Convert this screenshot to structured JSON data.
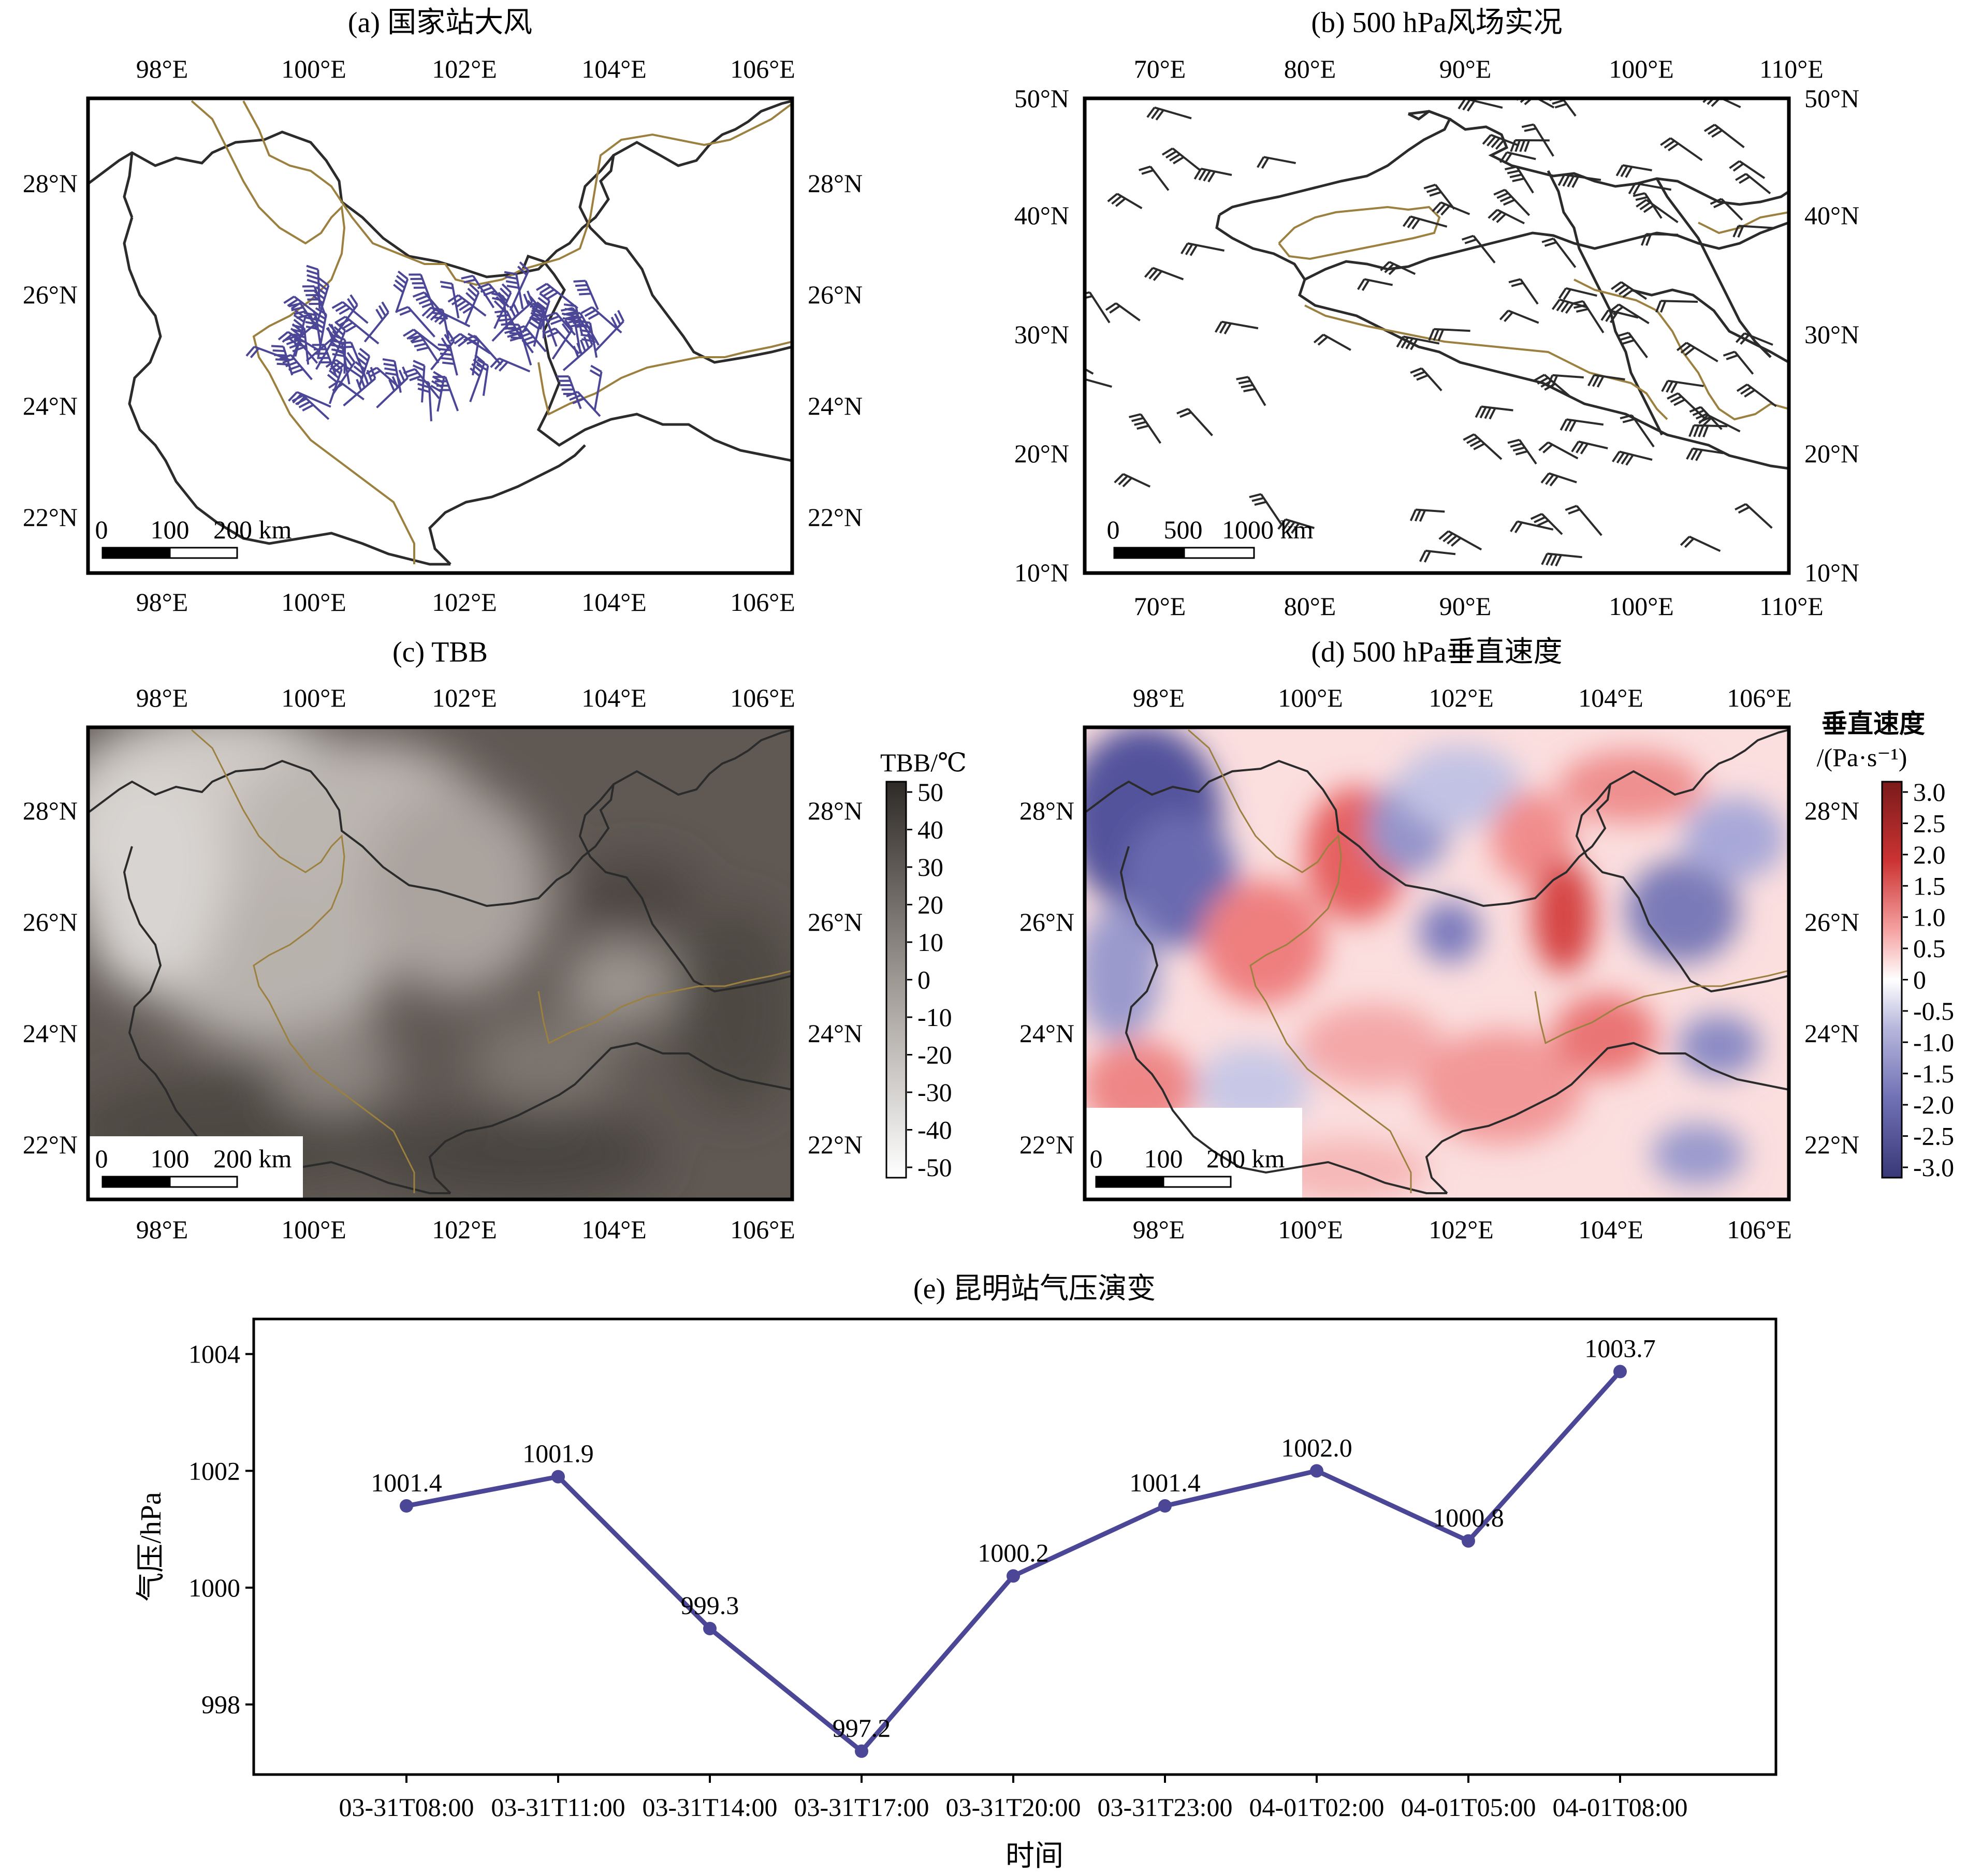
{
  "panels": {
    "a": {
      "title": "(a) 国家站大风",
      "lon_ticks": [
        "98°E",
        "100°E",
        "102°E",
        "104°E",
        "106°E"
      ],
      "lat_ticks": [
        "22°N",
        "24°N",
        "26°N",
        "28°N"
      ],
      "scalebar": {
        "labels": [
          "0",
          "100",
          "200 km"
        ]
      }
    },
    "b": {
      "title": "(b) 500 hPa风场实况",
      "lon_ticks": [
        "70°E",
        "80°E",
        "90°E",
        "100°E",
        "110°E"
      ],
      "lat_ticks": [
        "10°N",
        "20°N",
        "30°N",
        "40°N",
        "50°N"
      ],
      "scalebar": {
        "labels": [
          "0",
          "500",
          "1000 km"
        ]
      }
    },
    "c": {
      "title": "(c) TBB",
      "lon_ticks": [
        "98°E",
        "100°E",
        "102°E",
        "104°E",
        "106°E"
      ],
      "lat_ticks": [
        "22°N",
        "24°N",
        "26°N",
        "28°N"
      ],
      "scalebar": {
        "labels": [
          "0",
          "100",
          "200 km"
        ]
      },
      "colorbar": {
        "title": "TBB/℃",
        "labels": [
          "50",
          "40",
          "30",
          "20",
          "10",
          "0",
          "-10",
          "-20",
          "-30",
          "-40",
          "-50"
        ],
        "colors": [
          "#2e2a27",
          "#4a4440",
          "#615a55",
          "#766f6a",
          "#8a837e",
          "#9e9893",
          "#b3aeaa",
          "#c8c4c1",
          "#dcd9d7",
          "#eeedec",
          "#ffffff"
        ]
      }
    },
    "d": {
      "title": "(d) 500 hPa垂直速度",
      "lon_ticks": [
        "98°E",
        "100°E",
        "102°E",
        "104°E",
        "106°E"
      ],
      "lat_ticks": [
        "22°N",
        "24°N",
        "26°N",
        "28°N"
      ],
      "scalebar": {
        "labels": [
          "0",
          "100",
          "200 km"
        ]
      },
      "colorbar": {
        "title_line1": "垂直速度",
        "title_line2": "/(Pa·s⁻¹)",
        "labels": [
          "3.0",
          "2.5",
          "2.0",
          "1.5",
          "1.0",
          "0.5",
          "0",
          "-0.5",
          "-1.0",
          "-1.5",
          "-2.0",
          "-2.5",
          "-3.0"
        ],
        "colors": [
          "#7a1a1a",
          "#a52626",
          "#cc3333",
          "#e55050",
          "#ef7a7a",
          "#f6a5a5",
          "#fbd2d2",
          "#ffffff",
          "#dcdcef",
          "#b8b8dd",
          "#9494cb",
          "#7070b5",
          "#52529c",
          "#383878"
        ]
      }
    }
  },
  "colors": {
    "series": "#4b4796",
    "province_border": "#2b2b2b",
    "country_border": "#9c8040",
    "barb": "#4b4796"
  },
  "chart_data": {
    "type": "line",
    "title": "(e) 昆明站气压演变",
    "xlabel": "时间",
    "ylabel": "气压/hPa",
    "categories": [
      "03-31T08:00",
      "03-31T11:00",
      "03-31T14:00",
      "03-31T17:00",
      "03-31T20:00",
      "03-31T23:00",
      "04-01T02:00",
      "04-01T05:00",
      "04-01T08:00"
    ],
    "values": [
      1001.4,
      1001.9,
      999.3,
      997.2,
      1000.2,
      1001.4,
      1002.0,
      1000.8,
      1003.7
    ],
    "data_labels": [
      "1001.4",
      "1001.9",
      "999.3",
      "997.2",
      "1000.2",
      "1001.4",
      "1002.0",
      "1000.8",
      "1003.7"
    ],
    "ylim": [
      996.8,
      1004.6
    ],
    "yticks": [
      998,
      1000,
      1002,
      1004
    ],
    "ytick_labels": [
      "998",
      "1000",
      "1002",
      "1004"
    ],
    "grid": false,
    "marker": "circle"
  }
}
